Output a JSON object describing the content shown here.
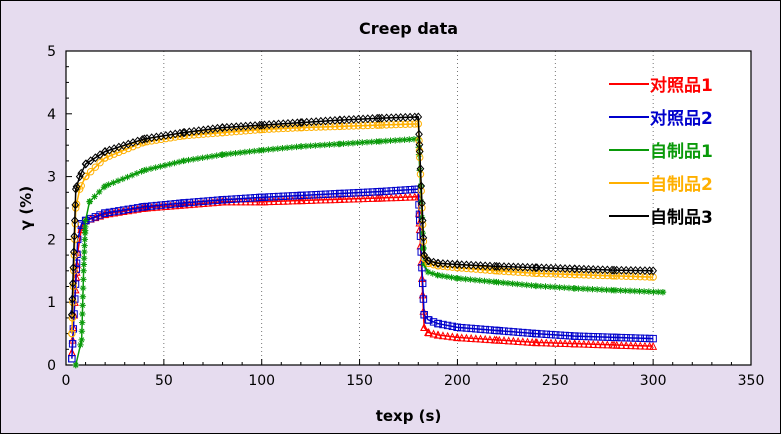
{
  "chart_data": {
    "type": "scatter",
    "title": "Creep data",
    "xlabel": "texp (s)",
    "ylabel": "γ (%)",
    "xlim": [
      0,
      350
    ],
    "ylim": [
      0,
      5
    ],
    "x_ticks": [
      "0",
      "50",
      "100",
      "150",
      "200",
      "250",
      "300",
      "350"
    ],
    "y_ticks": [
      "0",
      "1",
      "2",
      "3",
      "4",
      "5"
    ],
    "grid": "vertical dotted",
    "legend_position": "right",
    "series": [
      {
        "name": "对照品1",
        "color": "#ff0000",
        "marker": "triangle",
        "x": [
          3,
          6,
          8,
          10,
          20,
          40,
          60,
          80,
          100,
          120,
          140,
          160,
          180,
          183,
          185,
          190,
          200,
          220,
          240,
          260,
          280,
          300
        ],
        "y": [
          0.2,
          1.8,
          2.2,
          2.3,
          2.4,
          2.5,
          2.55,
          2.6,
          2.6,
          2.62,
          2.64,
          2.66,
          2.68,
          0.6,
          0.52,
          0.48,
          0.44,
          0.4,
          0.36,
          0.34,
          0.32,
          0.3
        ]
      },
      {
        "name": "对照品2",
        "color": "#0000cc",
        "marker": "square",
        "x": [
          3,
          6,
          8,
          10,
          20,
          40,
          60,
          80,
          100,
          120,
          140,
          160,
          180,
          183,
          185,
          190,
          200,
          220,
          240,
          260,
          280,
          300
        ],
        "y": [
          0.1,
          2.0,
          2.25,
          2.3,
          2.42,
          2.52,
          2.58,
          2.63,
          2.67,
          2.7,
          2.73,
          2.76,
          2.8,
          0.8,
          0.72,
          0.66,
          0.6,
          0.55,
          0.5,
          0.46,
          0.44,
          0.42
        ]
      },
      {
        "name": "自制品1",
        "color": "#0a9a0a",
        "marker": "asterisk",
        "x": [
          5,
          8,
          9,
          10,
          12,
          20,
          40,
          60,
          80,
          100,
          120,
          140,
          160,
          180,
          183,
          185,
          190,
          200,
          220,
          240,
          260,
          280,
          305
        ],
        "y": [
          0.0,
          0.4,
          1.5,
          2.3,
          2.6,
          2.85,
          3.1,
          3.25,
          3.35,
          3.42,
          3.48,
          3.52,
          3.56,
          3.6,
          1.6,
          1.48,
          1.43,
          1.38,
          1.32,
          1.26,
          1.22,
          1.19,
          1.16
        ]
      },
      {
        "name": "自制品2",
        "color": "#ffb000",
        "marker": "circle",
        "x": [
          3,
          5,
          7,
          10,
          20,
          40,
          60,
          80,
          100,
          120,
          140,
          160,
          180,
          183,
          185,
          190,
          200,
          220,
          240,
          260,
          280,
          300
        ],
        "y": [
          0.5,
          2.5,
          2.8,
          3.0,
          3.3,
          3.55,
          3.65,
          3.7,
          3.75,
          3.78,
          3.8,
          3.82,
          3.84,
          1.7,
          1.62,
          1.58,
          1.55,
          1.5,
          1.46,
          1.44,
          1.42,
          1.4
        ]
      },
      {
        "name": "自制品3",
        "color": "#000000",
        "marker": "diamond",
        "x": [
          3,
          5,
          7,
          10,
          20,
          40,
          60,
          80,
          100,
          120,
          140,
          160,
          180,
          183,
          185,
          190,
          200,
          220,
          240,
          260,
          280,
          300
        ],
        "y": [
          0.8,
          2.8,
          3.0,
          3.2,
          3.4,
          3.6,
          3.7,
          3.78,
          3.82,
          3.86,
          3.9,
          3.93,
          3.95,
          1.75,
          1.66,
          1.62,
          1.6,
          1.57,
          1.55,
          1.53,
          1.51,
          1.5
        ]
      }
    ]
  }
}
